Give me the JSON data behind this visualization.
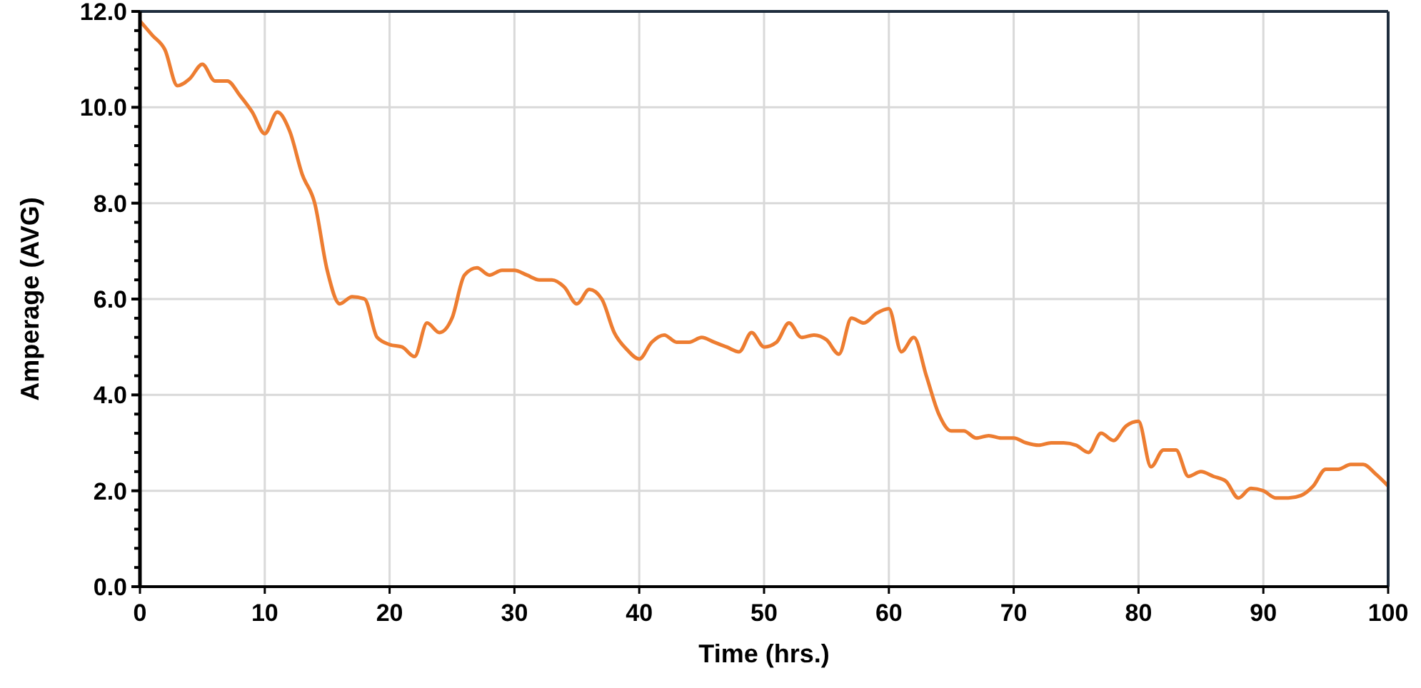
{
  "chart_data": {
    "type": "line",
    "xlabel": "Time (hrs.)",
    "ylabel": "Amperage (AVG)",
    "x": [
      0,
      1,
      2,
      3,
      4,
      5,
      6,
      7,
      8,
      9,
      10,
      11,
      12,
      13,
      14,
      15,
      16,
      17,
      18,
      19,
      20,
      21,
      22,
      23,
      24,
      25,
      26,
      27,
      28,
      29,
      30,
      31,
      32,
      33,
      34,
      35,
      36,
      37,
      38,
      39,
      40,
      41,
      42,
      43,
      44,
      45,
      46,
      47,
      48,
      49,
      50,
      51,
      52,
      53,
      54,
      55,
      56,
      57,
      58,
      59,
      60,
      61,
      62,
      63,
      64,
      65,
      66,
      67,
      68,
      69,
      70,
      71,
      72,
      73,
      74,
      75,
      76,
      77,
      78,
      79,
      80,
      81,
      82,
      83,
      84,
      85,
      86,
      87,
      88,
      89,
      90,
      91,
      92,
      93,
      94,
      95,
      96,
      97,
      98,
      99,
      100
    ],
    "series": [
      {
        "color": "#ed7d31",
        "values": [
          11.8,
          11.5,
          11.2,
          10.45,
          10.6,
          10.9,
          10.55,
          10.55,
          10.25,
          9.9,
          9.45,
          9.9,
          9.5,
          8.6,
          8.0,
          6.6,
          5.9,
          6.05,
          6.0,
          5.2,
          5.05,
          5.0,
          4.8,
          5.5,
          5.3,
          5.6,
          6.5,
          6.65,
          6.5,
          6.6,
          6.6,
          6.5,
          6.4,
          6.4,
          6.25,
          5.9,
          6.2,
          6.0,
          5.3,
          4.95,
          4.75,
          5.1,
          5.25,
          5.1,
          5.1,
          5.2,
          5.1,
          5.0,
          4.9,
          5.3,
          5.0,
          5.1,
          5.5,
          5.2,
          5.25,
          5.15,
          4.85,
          5.6,
          5.5,
          5.7,
          5.8,
          4.9,
          5.2,
          4.4,
          3.6,
          3.25,
          3.25,
          3.1,
          3.15,
          3.1,
          3.1,
          3.0,
          2.95,
          3.0,
          3.0,
          2.95,
          2.8,
          3.2,
          3.05,
          3.35,
          3.45,
          2.5,
          2.85,
          2.85,
          2.3,
          2.4,
          2.3,
          2.2,
          1.85,
          2.05,
          2.0,
          1.85,
          1.85,
          1.9,
          2.1,
          2.45,
          2.45,
          2.55,
          2.55,
          2.35,
          2.1
        ]
      }
    ],
    "xlim": [
      0,
      100
    ],
    "xticks": [
      0,
      10,
      20,
      30,
      40,
      50,
      60,
      70,
      80,
      90,
      100
    ],
    "ylim": [
      0,
      12
    ],
    "yticks": [
      {
        "value": 0,
        "label": "0.0"
      },
      {
        "value": 0.4,
        "label": null
      },
      {
        "value": 0.8,
        "label": null
      },
      {
        "value": 1.2,
        "label": null
      },
      {
        "value": 1.6,
        "label": null
      },
      {
        "value": 2,
        "label": "2.0"
      },
      {
        "value": 2.4,
        "label": null
      },
      {
        "value": 2.8,
        "label": null
      },
      {
        "value": 3.2,
        "label": null
      },
      {
        "value": 3.6,
        "label": null
      },
      {
        "value": 4,
        "label": "4.0"
      },
      {
        "value": 4.4,
        "label": null
      },
      {
        "value": 4.8,
        "label": null
      },
      {
        "value": 5.2,
        "label": null
      },
      {
        "value": 5.6,
        "label": null
      },
      {
        "value": 6,
        "label": "6.0"
      },
      {
        "value": 6.4,
        "label": null
      },
      {
        "value": 6.8,
        "label": null
      },
      {
        "value": 7.2,
        "label": null
      },
      {
        "value": 7.6,
        "label": null
      },
      {
        "value": 8,
        "label": "8.0"
      },
      {
        "value": 8.4,
        "label": null
      },
      {
        "value": 8.8,
        "label": null
      },
      {
        "value": 9.2,
        "label": null
      },
      {
        "value": 9.6,
        "label": null
      },
      {
        "value": 10,
        "label": "10.0"
      },
      {
        "value": 10.4,
        "label": null
      },
      {
        "value": 10.8,
        "label": null
      },
      {
        "value": 11.2,
        "label": null
      },
      {
        "value": 11.6,
        "label": null
      },
      {
        "value": 12,
        "label": "12.0"
      }
    ],
    "grid": true,
    "marker": "none",
    "line_style": "solid"
  }
}
